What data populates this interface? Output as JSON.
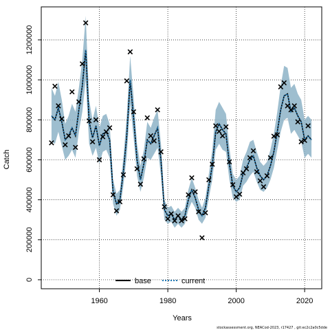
{
  "chart_data": {
    "type": "line",
    "xlabel": "Years",
    "ylabel": "Catch",
    "xlim": [
      1943,
      2025
    ],
    "ylim": [
      -45000,
      1365000
    ],
    "xticks": [
      1960,
      1980,
      2000,
      2020
    ],
    "yticks": [
      0,
      200000,
      400000,
      600000,
      800000,
      1000000,
      1200000
    ],
    "ytick_labels": [
      "0",
      "200000",
      "400000",
      "600000",
      "800000",
      "1000000",
      "1200000"
    ],
    "grid": true,
    "legend_position": "bottom-left",
    "series": [
      {
        "name": "base",
        "color": "#000000",
        "x": [
          1946,
          1947,
          1948,
          1949,
          1950,
          1951,
          1952,
          1953,
          1954,
          1955,
          1956,
          1957,
          1958,
          1959,
          1960,
          1961,
          1962,
          1963,
          1964,
          1965,
          1966,
          1967,
          1968,
          1969,
          1970,
          1971,
          1972,
          1973,
          1974,
          1975,
          1976,
          1977,
          1978,
          1979,
          1980,
          1981,
          1982,
          1983,
          1984,
          1985,
          1986,
          1987,
          1988,
          1989,
          1990,
          1991,
          1992,
          1993,
          1994,
          1995,
          1996,
          1997,
          1998,
          1999,
          2000,
          2001,
          2002,
          2003,
          2004,
          2005,
          2006,
          2007,
          2008,
          2009,
          2010,
          2011,
          2012,
          2013,
          2014,
          2015,
          2016,
          2017,
          2018,
          2019,
          2020,
          2021,
          2022
        ],
        "y": [
          820000,
          800000,
          860000,
          790000,
          700000,
          720000,
          760000,
          720000,
          850000,
          970000,
          1150000,
          790000,
          710000,
          770000,
          670000,
          730000,
          740000,
          700000,
          440000,
          380000,
          400000,
          540000,
          720000,
          1000000,
          810000,
          600000,
          500000,
          580000,
          700000,
          680000,
          720000,
          760000,
          600000,
          350000,
          320000,
          330000,
          300000,
          320000,
          300000,
          320000,
          400000,
          450000,
          410000,
          350000,
          320000,
          360000,
          470000,
          570000,
          740000,
          780000,
          750000,
          730000,
          580000,
          470000,
          440000,
          460000,
          530000,
          560000,
          600000,
          620000,
          560000,
          520000,
          500000,
          520000,
          570000,
          640000,
          740000,
          850000,
          920000,
          930000,
          840000,
          860000,
          820000,
          790000,
          700000,
          720000,
          700000
        ]
      },
      {
        "name": "current",
        "color": "#1f78b4",
        "x": [
          1946,
          1947,
          1948,
          1949,
          1950,
          1951,
          1952,
          1953,
          1954,
          1955,
          1956,
          1957,
          1958,
          1959,
          1960,
          1961,
          1962,
          1963,
          1964,
          1965,
          1966,
          1967,
          1968,
          1969,
          1970,
          1971,
          1972,
          1973,
          1974,
          1975,
          1976,
          1977,
          1978,
          1979,
          1980,
          1981,
          1982,
          1983,
          1984,
          1985,
          1986,
          1987,
          1988,
          1989,
          1990,
          1991,
          1992,
          1993,
          1994,
          1995,
          1996,
          1997,
          1998,
          1999,
          2000,
          2001,
          2002,
          2003,
          2004,
          2005,
          2006,
          2007,
          2008,
          2009,
          2010,
          2011,
          2012,
          2013,
          2014,
          2015,
          2016,
          2017,
          2018,
          2019,
          2020,
          2021,
          2022
        ],
        "y": [
          820000,
          800000,
          860000,
          790000,
          700000,
          720000,
          760000,
          720000,
          850000,
          970000,
          1150000,
          790000,
          710000,
          770000,
          670000,
          730000,
          740000,
          700000,
          440000,
          380000,
          400000,
          540000,
          720000,
          1000000,
          810000,
          600000,
          500000,
          580000,
          700000,
          680000,
          720000,
          760000,
          600000,
          350000,
          320000,
          330000,
          300000,
          320000,
          300000,
          320000,
          400000,
          450000,
          410000,
          350000,
          320000,
          360000,
          470000,
          570000,
          740000,
          780000,
          750000,
          730000,
          580000,
          470000,
          440000,
          460000,
          530000,
          560000,
          600000,
          620000,
          560000,
          520000,
          500000,
          520000,
          570000,
          640000,
          740000,
          850000,
          920000,
          930000,
          840000,
          860000,
          820000,
          790000,
          700000,
          720000,
          700000
        ]
      }
    ],
    "band": {
      "color": "#8db3c7",
      "x": [
        1946,
        1947,
        1948,
        1949,
        1950,
        1951,
        1952,
        1953,
        1954,
        1955,
        1956,
        1957,
        1958,
        1959,
        1960,
        1961,
        1962,
        1963,
        1964,
        1965,
        1966,
        1967,
        1968,
        1969,
        1970,
        1971,
        1972,
        1973,
        1974,
        1975,
        1976,
        1977,
        1978,
        1979,
        1980,
        1981,
        1982,
        1983,
        1984,
        1985,
        1986,
        1987,
        1988,
        1989,
        1990,
        1991,
        1992,
        1993,
        1994,
        1995,
        1996,
        1997,
        1998,
        1999,
        2000,
        2001,
        2002,
        2003,
        2004,
        2005,
        2006,
        2007,
        2008,
        2009,
        2010,
        2011,
        2012,
        2013,
        2014,
        2015,
        2016,
        2017,
        2018,
        2019,
        2020,
        2021,
        2022
      ],
      "upper": [
        960000,
        920000,
        990000,
        900000,
        780000,
        820000,
        880000,
        840000,
        960000,
        1100000,
        1320000,
        900000,
        800000,
        870000,
        760000,
        820000,
        830000,
        780000,
        500000,
        430000,
        450000,
        610000,
        820000,
        1120000,
        910000,
        680000,
        570000,
        650000,
        790000,
        760000,
        810000,
        850000,
        680000,
        400000,
        360000,
        370000,
        340000,
        360000,
        340000,
        360000,
        450000,
        510000,
        460000,
        400000,
        360000,
        410000,
        530000,
        650000,
        850000,
        890000,
        860000,
        830000,
        660000,
        530000,
        500000,
        520000,
        600000,
        640000,
        690000,
        700000,
        640000,
        590000,
        570000,
        590000,
        650000,
        730000,
        840000,
        970000,
        1070000,
        1060000,
        960000,
        980000,
        930000,
        900000,
        800000,
        820000,
        800000
      ],
      "lower": [
        690000,
        680000,
        740000,
        670000,
        600000,
        620000,
        650000,
        610000,
        740000,
        840000,
        1000000,
        680000,
        620000,
        660000,
        580000,
        640000,
        650000,
        610000,
        380000,
        320000,
        350000,
        470000,
        620000,
        880000,
        710000,
        520000,
        440000,
        510000,
        610000,
        600000,
        630000,
        660000,
        520000,
        300000,
        280000,
        290000,
        260000,
        280000,
        260000,
        280000,
        350000,
        390000,
        360000,
        300000,
        280000,
        310000,
        410000,
        500000,
        650000,
        680000,
        650000,
        640000,
        500000,
        410000,
        390000,
        400000,
        470000,
        490000,
        520000,
        540000,
        490000,
        450000,
        440000,
        460000,
        500000,
        560000,
        650000,
        740000,
        800000,
        810000,
        730000,
        750000,
        720000,
        690000,
        610000,
        630000,
        610000
      ]
    },
    "observations": {
      "marker": "x",
      "x": [
        1946,
        1947,
        1948,
        1949,
        1950,
        1951,
        1952,
        1953,
        1954,
        1955,
        1956,
        1957,
        1958,
        1959,
        1960,
        1961,
        1962,
        1963,
        1964,
        1965,
        1966,
        1967,
        1968,
        1969,
        1970,
        1971,
        1972,
        1973,
        1974,
        1975,
        1976,
        1977,
        1978,
        1979,
        1980,
        1981,
        1982,
        1983,
        1984,
        1985,
        1986,
        1987,
        1988,
        1989,
        1990,
        1991,
        1992,
        1993,
        1994,
        1995,
        1996,
        1997,
        1998,
        1999,
        2000,
        2001,
        2002,
        2003,
        2004,
        2005,
        2006,
        2007,
        2008,
        2009,
        2010,
        2011,
        2012,
        2013,
        2014,
        2015,
        2016,
        2017,
        2018,
        2019,
        2020,
        2021
      ],
      "y": [
        685000,
        968000,
        870000,
        805000,
        675000,
        720000,
        940000,
        662000,
        890000,
        1080000,
        1285000,
        795000,
        690000,
        800000,
        600000,
        715000,
        740000,
        760000,
        425000,
        345000,
        390000,
        525000,
        995000,
        1140000,
        840000,
        555000,
        478000,
        605000,
        810000,
        720000,
        695000,
        850000,
        640000,
        365000,
        305000,
        330000,
        295000,
        320000,
        295000,
        305000,
        425000,
        510000,
        440000,
        340000,
        210000,
        335000,
        500000,
        578000,
        770000,
        742000,
        720000,
        765000,
        590000,
        475000,
        415000,
        428000,
        535000,
        555000,
        610000,
        645000,
        540000,
        495000,
        465000,
        520000,
        610000,
        718000,
        725000,
        965000,
        985000,
        870000,
        850000,
        870000,
        790000,
        690000,
        697000,
        770000
      ]
    },
    "legend": [
      {
        "name": "base",
        "style": "solid",
        "color": "#000000"
      },
      {
        "name": "current",
        "style": "dotted",
        "color": "#1f78b4"
      }
    ],
    "footnote": "stockassessment.org, NEACod-2023, r17427 , git:ec2c2a0c5dde"
  }
}
